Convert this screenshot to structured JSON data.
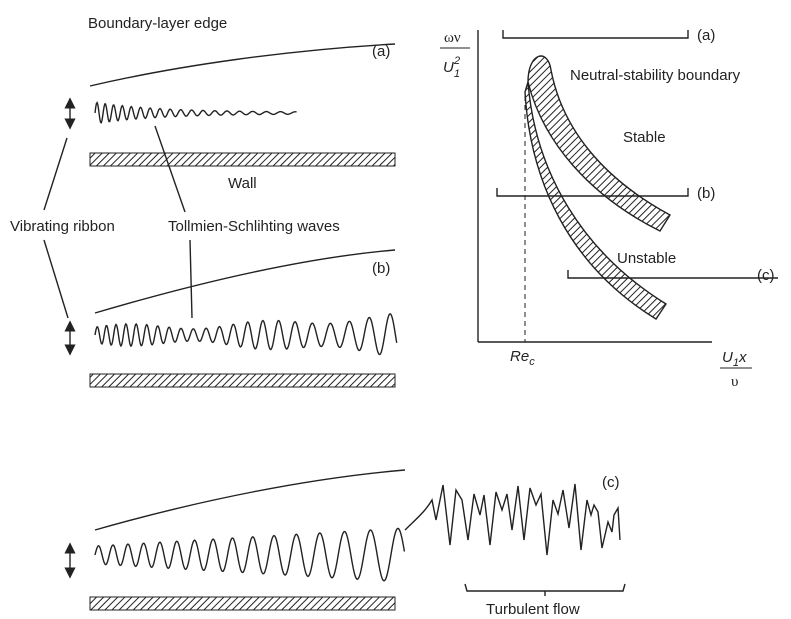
{
  "sketch": {
    "edge_label": "Boundary-layer edge",
    "wall_label": "Wall",
    "ribbon_label": "Vibrating ribbon",
    "waves_label": "Tollmien-Schlihting waves",
    "turbulent_label": "Turbulent flow",
    "panels": [
      "(a)",
      "(b)",
      "(c)"
    ]
  },
  "stability_diagram": {
    "y_label_top": "ων",
    "y_label_base": "U",
    "y_label_sub": "1",
    "y_label_sup": "2",
    "x_label_base": "U",
    "x_label_sub": "1",
    "x_label_rest": "x",
    "x_label_bottom": "υ",
    "critical_base": "Re",
    "critical_sub": "c",
    "boundary_label": "Neutral-stability boundary",
    "stable_label": "Stable",
    "unstable_label": "Unstable",
    "cuts": [
      "(a)",
      "(b)",
      "(c)"
    ]
  }
}
